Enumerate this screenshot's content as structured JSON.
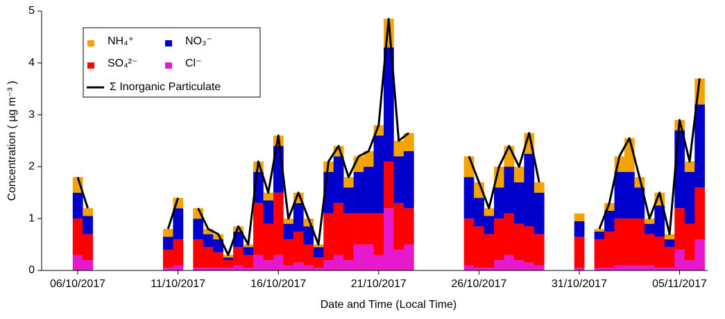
{
  "chart_data": {
    "type": "stacked-bar",
    "x_label": "Date and Time (Local Time)",
    "y_label": "Concentration ( µg m⁻³ )",
    "x": [
      0.0,
      0.5,
      1.0,
      1.5,
      2.0,
      2.5,
      3.0,
      3.5,
      4.0,
      4.5,
      5.0,
      5.5,
      6.0,
      6.5,
      7.0,
      7.5,
      8.0,
      8.5,
      9.0,
      9.5,
      10.0,
      10.5,
      11.0,
      11.5,
      12.0,
      12.5,
      13.0,
      13.5,
      14.0,
      14.5,
      15.0,
      15.5,
      16.0,
      16.5,
      17.0,
      17.5,
      18.0,
      18.5,
      19.0,
      19.5,
      20.0,
      20.5,
      21.0,
      21.5,
      22.0,
      22.5,
      23.0,
      23.5,
      24.0,
      24.5,
      25.0,
      25.5,
      26.0,
      26.5,
      27.0,
      27.5,
      28.0,
      28.5,
      29.0,
      29.5,
      30.0,
      30.5,
      31.0
    ],
    "series": [
      {
        "name": "Cl⁻",
        "color": "#e619cc",
        "values": [
          0.3,
          0.2,
          null,
          null,
          null,
          null,
          null,
          null,
          null,
          0.05,
          0.1,
          null,
          0.05,
          0.05,
          0.05,
          0.05,
          0.1,
          0.05,
          0.3,
          0.2,
          0.3,
          0.1,
          0.15,
          0.1,
          0.05,
          0.2,
          0.3,
          0.2,
          0.5,
          0.5,
          0.3,
          1.2,
          0.4,
          0.5,
          null,
          null,
          null,
          null,
          null,
          0.1,
          0.05,
          0.05,
          0.2,
          0.3,
          0.2,
          0.15,
          0.1,
          null,
          null,
          null,
          0.05,
          null,
          0.05,
          0.05,
          0.1,
          0.1,
          0.1,
          0.1,
          0.05,
          0.05,
          0.4,
          0.2,
          0.6
        ]
      },
      {
        "name": "SO₄²⁻",
        "color": "#ff0000",
        "values": [
          0.7,
          0.5,
          null,
          null,
          null,
          null,
          null,
          null,
          null,
          0.35,
          0.5,
          null,
          0.55,
          0.4,
          0.3,
          0.15,
          0.35,
          0.25,
          1.0,
          0.7,
          1.2,
          0.5,
          0.6,
          0.4,
          0.2,
          0.9,
          1.0,
          0.9,
          0.6,
          0.6,
          0.8,
          0.9,
          0.9,
          0.7,
          null,
          null,
          null,
          null,
          null,
          0.9,
          0.8,
          0.65,
          0.8,
          0.8,
          0.7,
          0.7,
          0.6,
          null,
          null,
          null,
          0.6,
          null,
          0.55,
          0.7,
          0.9,
          0.9,
          0.9,
          0.6,
          0.6,
          0.4,
          0.8,
          0.7,
          1.0
        ]
      },
      {
        "name": "NO₃⁻",
        "color": "#0000cc",
        "values": [
          0.5,
          0.35,
          null,
          null,
          null,
          null,
          null,
          null,
          null,
          0.25,
          0.6,
          null,
          0.4,
          0.25,
          0.25,
          0.05,
          0.3,
          0.15,
          0.6,
          0.45,
          0.9,
          0.3,
          0.55,
          0.35,
          0.2,
          0.8,
          0.9,
          0.5,
          0.8,
          0.9,
          1.5,
          2.2,
          0.9,
          1.1,
          null,
          null,
          null,
          null,
          null,
          0.8,
          0.55,
          0.35,
          0.6,
          0.9,
          0.8,
          1.4,
          0.8,
          null,
          null,
          null,
          0.3,
          null,
          0.15,
          0.4,
          0.9,
          0.9,
          0.6,
          0.2,
          0.6,
          0.15,
          1.5,
          1.0,
          1.6
        ]
      },
      {
        "name": "NH₄⁺",
        "color": "#f5a300",
        "values": [
          0.3,
          0.15,
          null,
          null,
          null,
          null,
          null,
          null,
          null,
          0.15,
          0.2,
          null,
          0.2,
          0.1,
          0.1,
          0.05,
          0.1,
          0.05,
          0.2,
          0.15,
          0.2,
          0.1,
          0.2,
          0.15,
          0.05,
          0.2,
          0.2,
          0.2,
          0.3,
          0.3,
          0.2,
          0.55,
          0.3,
          0.35,
          null,
          null,
          null,
          null,
          null,
          0.4,
          0.3,
          0.15,
          0.4,
          0.4,
          0.3,
          0.4,
          0.2,
          null,
          null,
          null,
          0.15,
          null,
          0.05,
          0.15,
          0.3,
          0.65,
          0.2,
          0.1,
          0.25,
          0.1,
          0.2,
          0.2,
          0.5
        ]
      }
    ],
    "total": {
      "name": "Σ Inorganic Particulate",
      "color": "#000000",
      "values": [
        1.8,
        1.2,
        null,
        null,
        null,
        null,
        null,
        null,
        null,
        0.8,
        1.4,
        null,
        1.2,
        0.8,
        0.7,
        0.3,
        0.85,
        0.5,
        2.1,
        1.5,
        2.6,
        1.0,
        1.5,
        1.0,
        0.5,
        2.1,
        2.4,
        1.8,
        2.2,
        2.3,
        2.8,
        4.85,
        2.5,
        2.65,
        null,
        null,
        null,
        null,
        null,
        2.2,
        1.7,
        1.2,
        2.0,
        2.4,
        2.0,
        2.65,
        1.7,
        null,
        null,
        null,
        1.1,
        null,
        0.8,
        1.3,
        2.2,
        2.55,
        1.8,
        1.0,
        1.5,
        0.7,
        2.9,
        2.1,
        3.7
      ]
    },
    "xlim": [
      -1.8,
      31.4
    ],
    "xticks": [
      {
        "value": 0,
        "label": "06/10/2017"
      },
      {
        "value": 5,
        "label": "11/10/2017"
      },
      {
        "value": 10,
        "label": "16/10/2017"
      },
      {
        "value": 15,
        "label": "21/10/2017"
      },
      {
        "value": 20,
        "label": "26/10/2017"
      },
      {
        "value": 25,
        "label": "31/10/2017"
      },
      {
        "value": 30,
        "label": "05/11/2017"
      }
    ],
    "ylim": [
      0,
      5
    ],
    "yticks": [
      0,
      1,
      2,
      3,
      4,
      5
    ],
    "legend": "upper left"
  }
}
